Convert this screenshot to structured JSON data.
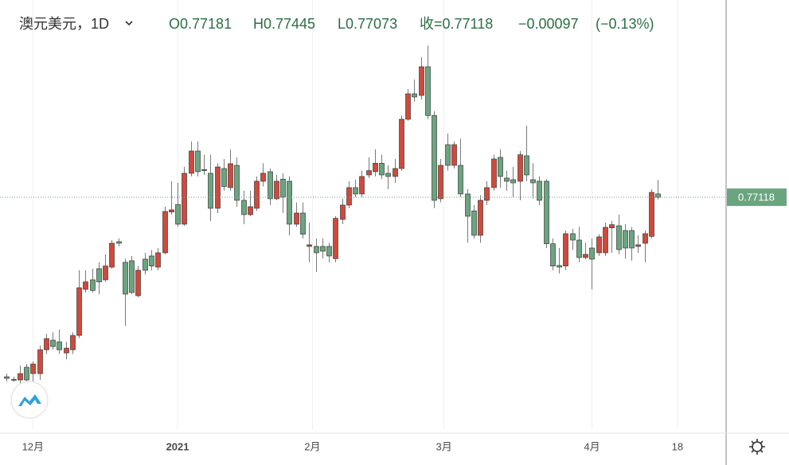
{
  "chart_data": {
    "type": "candlestick",
    "title": "澳元美元，1D",
    "header_labels": [
      "O",
      "H",
      "L",
      "收="
    ],
    "change": {
      "value": -0.00097,
      "label": "−0.00097"
    },
    "change_pct": {
      "value": -0.13,
      "label": "(−0.13%)"
    },
    "up_color": "#d04a3c",
    "down_color": "#6aa57f",
    "wick_color": "#7a7a7a",
    "header_color": "#2a6e46",
    "grid": true,
    "xlim": [
      -1,
      109.4
    ],
    "ylim": [
      0.7274,
      0.8084
    ],
    "xticks": [
      {
        "value": 4,
        "label": "12月"
      },
      {
        "value": 26,
        "label": "2021"
      },
      {
        "value": 46.5,
        "label": "2月"
      },
      {
        "value": 66.5,
        "label": "3月"
      },
      {
        "value": 89,
        "label": "4月"
      },
      {
        "value": 102,
        "label": "18"
      }
    ],
    "open": [
      0.7373,
      0.7367,
      0.7367,
      0.7391,
      0.7379,
      0.7379,
      0.7424,
      0.7442,
      0.7439,
      0.7418,
      0.7424,
      0.7451,
      0.7538,
      0.7556,
      0.7577,
      0.7556,
      0.758,
      0.7628,
      0.7589,
      0.7592,
      0.7526,
      0.7595,
      0.7601,
      0.758,
      0.7607,
      0.7684,
      0.7698,
      0.7661,
      0.7757,
      0.7799,
      0.7764,
      0.7757,
      0.7691,
      0.7766,
      0.773,
      0.7772,
      0.7706,
      0.7679,
      0.7691,
      0.7742,
      0.776,
      0.7709,
      0.7746,
      0.7742,
      0.7661,
      0.7682,
      0.7619,
      0.7619,
      0.7619,
      0.7619,
      0.7596,
      0.767,
      0.7697,
      0.773,
      0.7718,
      0.7754,
      0.776,
      0.7776,
      0.7757,
      0.7751,
      0.7766,
      0.7859,
      0.7907,
      0.7904,
      0.7958,
      0.7866,
      0.7709,
      0.7811,
      0.7772,
      0.7772,
      0.7718,
      0.7686,
      0.764,
      0.7706,
      0.773,
      0.7787,
      0.7748,
      0.7745,
      0.7742,
      0.779,
      0.7745,
      0.7742,
      0.7742,
      0.7624,
      0.7583,
      0.7582,
      0.7643,
      0.7631,
      0.7598,
      0.7616,
      0.7607,
      0.7607,
      0.7654,
      0.7658,
      0.7649,
      0.7649,
      0.7619,
      0.7625,
      0.7638,
      0.77181
    ],
    "high": [
      0.7379,
      0.7373,
      0.7394,
      0.7397,
      0.7402,
      0.7432,
      0.7454,
      0.7457,
      0.7462,
      0.7439,
      0.7457,
      0.7574,
      0.7574,
      0.7577,
      0.7589,
      0.7604,
      0.7631,
      0.7634,
      0.7596,
      0.7601,
      0.7582,
      0.7607,
      0.7612,
      0.7616,
      0.7694,
      0.7742,
      0.7739,
      0.7769,
      0.7817,
      0.7817,
      0.7792,
      0.7792,
      0.7776,
      0.7784,
      0.7802,
      0.7787,
      0.7724,
      0.7724,
      0.7751,
      0.7776,
      0.7766,
      0.7754,
      0.7757,
      0.7751,
      0.7702,
      0.7702,
      0.7664,
      0.7634,
      0.7634,
      0.7626,
      0.7676,
      0.7709,
      0.7742,
      0.7745,
      0.7762,
      0.7787,
      0.7802,
      0.7792,
      0.7772,
      0.7784,
      0.7866,
      0.7916,
      0.7934,
      0.7976,
      0.7998,
      0.7874,
      0.7784,
      0.7832,
      0.7817,
      0.7822,
      0.7727,
      0.7697,
      0.7716,
      0.7742,
      0.7792,
      0.7802,
      0.7762,
      0.7769,
      0.7799,
      0.7847,
      0.7776,
      0.7751,
      0.7746,
      0.7634,
      0.7616,
      0.7649,
      0.7652,
      0.7656,
      0.7626,
      0.7634,
      0.7642,
      0.7664,
      0.7667,
      0.7679,
      0.7661,
      0.7656,
      0.764,
      0.7649,
      0.7727,
      0.77445
    ],
    "low": [
      0.7364,
      0.7364,
      0.7356,
      0.7356,
      0.7364,
      0.7367,
      0.7416,
      0.7424,
      0.7416,
      0.7406,
      0.7416,
      0.7446,
      0.7532,
      0.7532,
      0.7529,
      0.7552,
      0.7577,
      0.7619,
      0.7469,
      0.7529,
      0.7523,
      0.7566,
      0.7574,
      0.7574,
      0.7604,
      0.7679,
      0.7656,
      0.7658,
      0.7751,
      0.7751,
      0.7754,
      0.7667,
      0.7682,
      0.7724,
      0.7724,
      0.7694,
      0.7661,
      0.7676,
      0.7686,
      0.7732,
      0.7697,
      0.7706,
      0.7682,
      0.764,
      0.7656,
      0.7634,
      0.7589,
      0.7571,
      0.7596,
      0.7589,
      0.7589,
      0.7661,
      0.7691,
      0.7712,
      0.7712,
      0.7748,
      0.7751,
      0.7746,
      0.7727,
      0.7739,
      0.7762,
      0.7856,
      0.7892,
      0.7896,
      0.7859,
      0.7691,
      0.7702,
      0.7762,
      0.7766,
      0.7712,
      0.7626,
      0.7634,
      0.7626,
      0.7697,
      0.7724,
      0.773,
      0.7724,
      0.7712,
      0.7706,
      0.7742,
      0.7709,
      0.7697,
      0.7616,
      0.7574,
      0.7568,
      0.7574,
      0.7612,
      0.7589,
      0.7595,
      0.7538,
      0.7601,
      0.7601,
      0.7607,
      0.7604,
      0.7596,
      0.7592,
      0.7607,
      0.7589,
      0.7634,
      0.77073
    ],
    "close": [
      0.737,
      0.7368,
      0.7379,
      0.7367,
      0.7397,
      0.7424,
      0.7445,
      0.743,
      0.7424,
      0.7427,
      0.7451,
      0.7541,
      0.7552,
      0.7536,
      0.7552,
      0.7582,
      0.7625,
      0.7625,
      0.7529,
      0.7532,
      0.7574,
      0.7574,
      0.7582,
      0.7607,
      0.7685,
      0.7688,
      0.7661,
      0.7757,
      0.7799,
      0.776,
      0.7762,
      0.7691,
      0.7769,
      0.7732,
      0.7775,
      0.7706,
      0.7679,
      0.7694,
      0.7742,
      0.7757,
      0.7709,
      0.7742,
      0.7712,
      0.7661,
      0.7682,
      0.7642,
      0.7622,
      0.7607,
      0.761,
      0.7601,
      0.7672,
      0.7697,
      0.773,
      0.7718,
      0.7751,
      0.7762,
      0.7776,
      0.7754,
      0.7751,
      0.7766,
      0.7859,
      0.7907,
      0.7901,
      0.7958,
      0.7866,
      0.7706,
      0.7772,
      0.7772,
      0.7811,
      0.7718,
      0.7676,
      0.764,
      0.7706,
      0.773,
      0.7784,
      0.7751,
      0.7742,
      0.7739,
      0.7792,
      0.7754,
      0.7739,
      0.7706,
      0.7624,
      0.7582,
      0.758,
      0.7643,
      0.7631,
      0.7598,
      0.7604,
      0.7595,
      0.7637,
      0.7655,
      0.766,
      0.7613,
      0.7616,
      0.7616,
      0.7622,
      0.7643,
      0.7721,
      0.77118
    ]
  }
}
